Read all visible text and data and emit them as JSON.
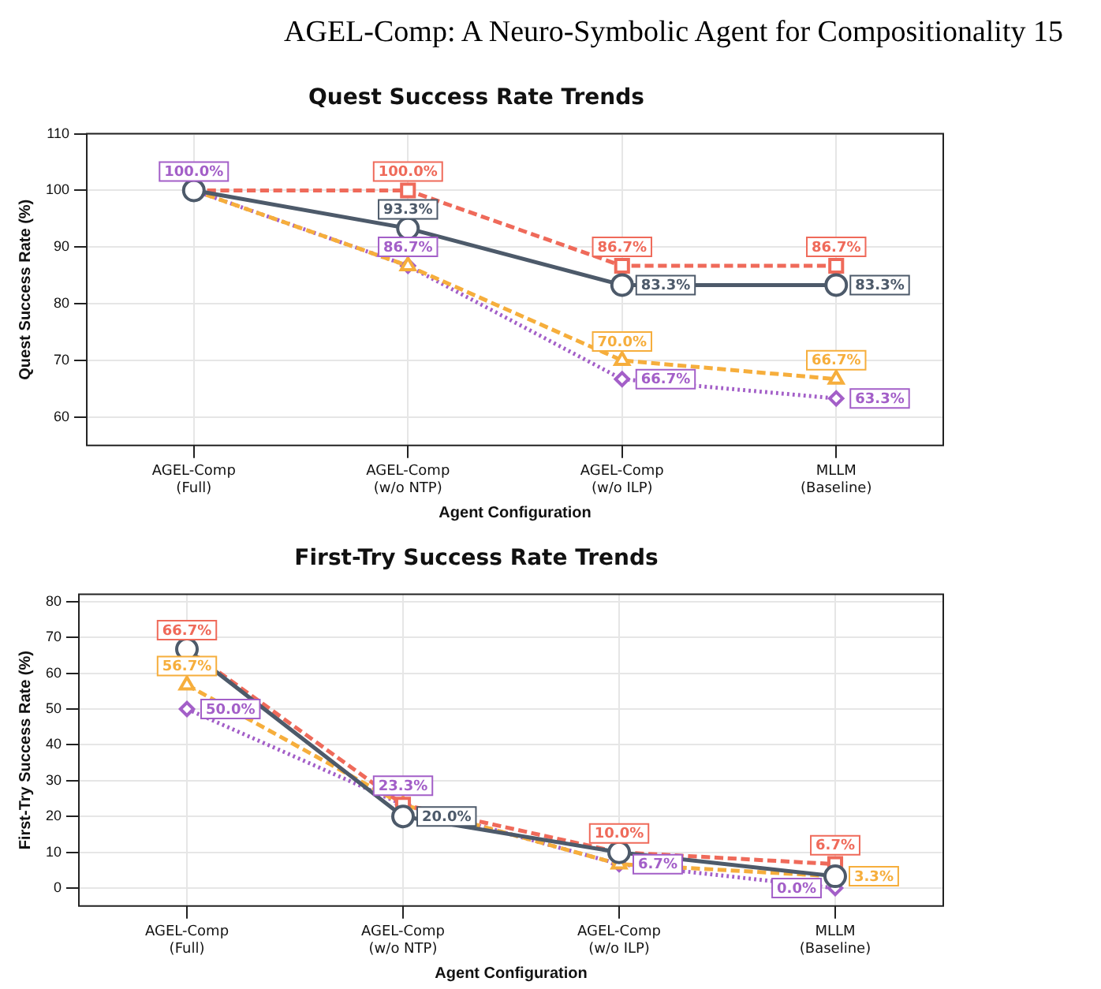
{
  "chart_data": [
    {
      "type": "line",
      "title": "Quest Success Rate Trends",
      "xlabel": "Agent Configuration",
      "ylabel": "Quest Success Rate (%)",
      "annotations": [
        "AGEL-Comp: A Neuro-Symbolic Agent for Compositionality    15"
      ],
      "categories": [
        "AGEL-Comp\n(Full)",
        "AGEL-Comp\n(w/o NTP)",
        "AGEL-Comp\n(w/o ILP)",
        "MLLM\n(Baseline)"
      ],
      "ylim": [
        55,
        110
      ],
      "yticks": [
        60,
        70,
        80,
        90,
        100,
        110
      ],
      "grid": true,
      "legend": false,
      "series": [
        {
          "color": "#4d5a6a",
          "marker": "circle",
          "line_style": "solid",
          "values": [
            100,
            93.3,
            83.3,
            83.3
          ],
          "value_labels": [
            null,
            "93.3%",
            "83.3%",
            "83.3%"
          ]
        },
        {
          "color": "#ef6a5a",
          "marker": "square",
          "line_style": "dashed",
          "values": [
            100,
            100,
            86.7,
            86.7
          ],
          "value_labels": [
            null,
            "100.0%",
            "86.7%",
            "86.7%"
          ]
        },
        {
          "color": "#f6ae3c",
          "marker": "triangle",
          "line_style": "dashed",
          "values": [
            100,
            86.7,
            70.0,
            66.7
          ],
          "value_labels": [
            null,
            null,
            "70.0%",
            "66.7%"
          ]
        },
        {
          "color": "#a35fc8",
          "marker": "diamond",
          "line_style": "dotted",
          "values": [
            100,
            86.7,
            66.7,
            63.3
          ],
          "value_labels": [
            "100.0%",
            "86.7%",
            "66.7%",
            "63.3%"
          ]
        }
      ]
    },
    {
      "type": "line",
      "title": "First-Try Success Rate Trends",
      "xlabel": "Agent Configuration",
      "ylabel": "First-Try Success Rate (%)",
      "categories": [
        "AGEL-Comp\n(Full)",
        "AGEL-Comp\n(w/o NTP)",
        "AGEL-Comp\n(w/o ILP)",
        "MLLM\n(Baseline)"
      ],
      "ylim": [
        -5,
        82
      ],
      "yticks": [
        0,
        10,
        20,
        30,
        40,
        50,
        60,
        70,
        80
      ],
      "grid": true,
      "legend": false,
      "series": [
        {
          "color": "#4d5a6a",
          "marker": "circle",
          "line_style": "solid",
          "values": [
            66.7,
            20.0,
            10.0,
            3.3
          ],
          "value_labels": [
            null,
            "20.0%",
            null,
            null
          ]
        },
        {
          "color": "#ef6a5a",
          "marker": "square",
          "line_style": "dashed",
          "values": [
            66.7,
            23.3,
            10.0,
            6.7
          ],
          "value_labels": [
            "66.7%",
            null,
            "10.0%",
            "6.7%"
          ]
        },
        {
          "color": "#f6ae3c",
          "marker": "triangle",
          "line_style": "dashed",
          "values": [
            56.7,
            23.3,
            6.7,
            3.3
          ],
          "value_labels": [
            "56.7%",
            null,
            null,
            "3.3%"
          ]
        },
        {
          "color": "#a35fc8",
          "marker": "diamond",
          "line_style": "dotted",
          "values": [
            50.0,
            23.3,
            6.7,
            0.0
          ],
          "value_labels": [
            "50.0%",
            "23.3%",
            "6.7%",
            "0.0%"
          ]
        }
      ]
    }
  ]
}
